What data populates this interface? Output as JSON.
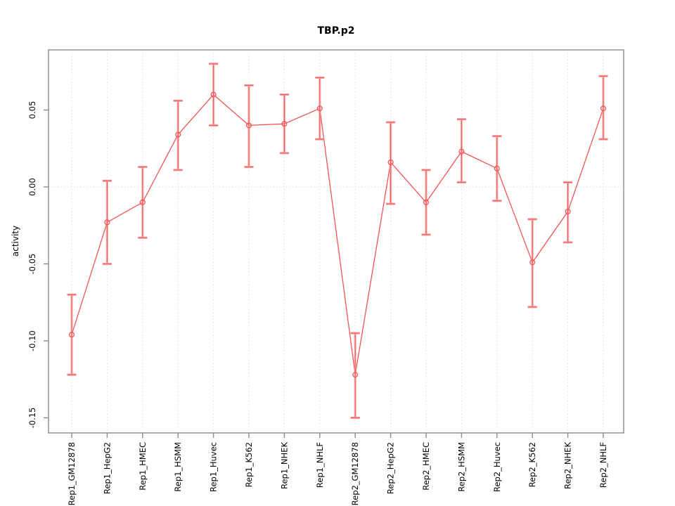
{
  "figure": {
    "title": "TBP.p2",
    "ylabel": "activity"
  },
  "chart_data": {
    "type": "line",
    "title": "TBP.p2",
    "xlabel": "",
    "ylabel": "activity",
    "legend_position": "none",
    "categories": [
      "Rep1_GM12878",
      "Rep1_HepG2",
      "Rep1_HMEC",
      "Rep1_HSMM",
      "Rep1_Huvec",
      "Rep1_K562",
      "Rep1_NHEK",
      "Rep1_NHLF",
      "Rep2_GM12878",
      "Rep2_HepG2",
      "Rep2_HMEC",
      "Rep2_HSMM",
      "Rep2_Huvec",
      "Rep2_K562",
      "Rep2_NHEK",
      "Rep2_NHLF"
    ],
    "series": [
      {
        "name": "activity",
        "values": [
          -0.096,
          -0.023,
          -0.01,
          0.034,
          0.06,
          0.04,
          0.041,
          0.051,
          -0.122,
          0.016,
          -0.01,
          0.023,
          0.012,
          -0.049,
          -0.016,
          0.051
        ],
        "ci_low": [
          -0.122,
          -0.05,
          -0.033,
          0.011,
          0.04,
          0.013,
          0.022,
          0.031,
          -0.15,
          -0.011,
          -0.031,
          0.003,
          -0.009,
          -0.078,
          -0.036,
          0.031
        ],
        "ci_high": [
          -0.07,
          0.004,
          0.013,
          0.056,
          0.08,
          0.066,
          0.06,
          0.071,
          -0.095,
          0.042,
          0.011,
          0.044,
          0.033,
          -0.021,
          0.003,
          0.072
        ]
      }
    ],
    "yticks": [
      0.05,
      0.0,
      -0.05,
      -0.1,
      -0.15
    ],
    "ytick_labels": [
      "0.05",
      "0.00",
      "-0.05",
      "-0.10",
      "-0.15"
    ],
    "ylim": [
      -0.16,
      0.089
    ],
    "grid": {
      "horizontal_zero_line": "dotted",
      "vertical_per_category": "dotted"
    },
    "marker": "open-circle",
    "colors": {
      "line": "#f25555",
      "marker": "#f25555",
      "errorbar_halo": "#f7a0a0",
      "errorbar_core": "#ee5f5f",
      "grid": "#dcdcdc",
      "axis": "#8a8a8a",
      "text": "#000000"
    }
  }
}
